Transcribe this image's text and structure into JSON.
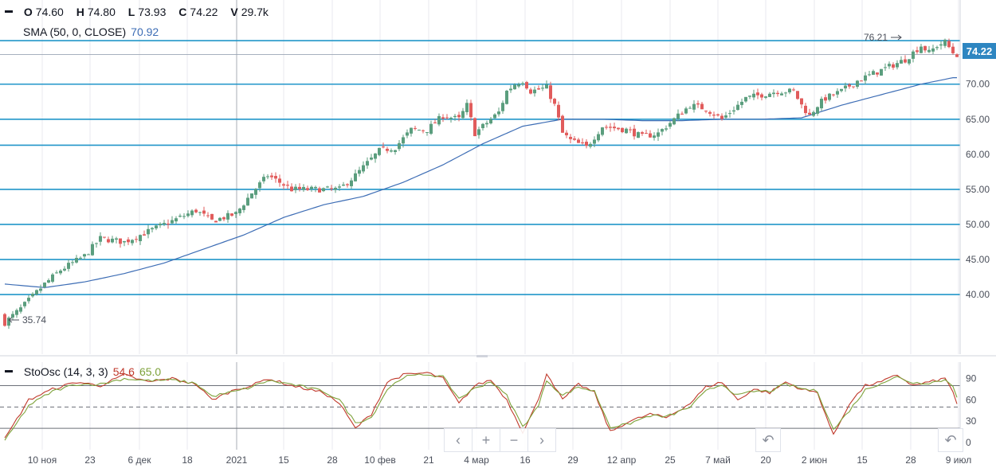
{
  "legend": {
    "o_label": "O",
    "o_value": "74.60",
    "h_label": "H",
    "h_value": "74.80",
    "l_label": "L",
    "l_value": "73.93",
    "c_label": "C",
    "c_value": "74.22",
    "v_label": "V",
    "v_value": "29.7k",
    "sma_label": "SMA (50, 0, CLOSE)",
    "sma_value": "70.92",
    "sto_label": "StoOsc (14, 3, 3)",
    "sto_k_value": "54.6",
    "sto_d_value": "65.0"
  },
  "price_tag": "74.22",
  "annotations": {
    "max_label": "76.21",
    "min_label": "35.74"
  },
  "nav": {
    "left_icon": "chevron-left-icon",
    "zoom_in_icon": "plus-icon",
    "zoom_out_icon": "minus-icon",
    "right_icon": "chevron-right-icon",
    "reset_icon": "undo-icon"
  },
  "colors": {
    "up": "#5b9e7e",
    "down": "#e15c5c",
    "sma": "#3d6db5",
    "hline": "#2196c9",
    "sto_k": "#c0392b",
    "sto_d": "#7da23a",
    "grid": "#e8eaef"
  },
  "chart_data": [
    {
      "type": "candlestick",
      "title": "",
      "ylim": [
        31.5,
        82
      ],
      "y_ticks": [
        "40.00",
        "45.00",
        "50.00",
        "55.00",
        "60.00",
        "65.00",
        "70.00"
      ],
      "y_tick_values": [
        40,
        45,
        50,
        55,
        60,
        65,
        70
      ],
      "horizontal_lines": [
        76.21,
        70,
        65,
        61.3,
        55,
        50,
        45,
        40
      ],
      "last_price": 74.22,
      "x_ticks": [
        "10 ноя",
        "23",
        "6 дек",
        "18",
        "2021",
        "15",
        "28",
        "10 фев",
        "21",
        "4 мар",
        "16",
        "29",
        "12 апр",
        "25",
        "7 май",
        "20",
        "2 июн",
        "15",
        "28",
        "9 июл"
      ],
      "x_tick_positions": [
        53,
        113,
        175,
        235,
        297,
        356,
        417,
        477,
        538,
        598,
        659,
        719,
        780,
        841,
        901,
        961,
        1022,
        1082,
        1143,
        1203
      ],
      "close_anchors": [
        [
          0,
          36
        ],
        [
          4,
          38
        ],
        [
          10,
          41.5
        ],
        [
          14,
          43.5
        ],
        [
          20,
          45.5
        ],
        [
          24,
          48
        ],
        [
          30,
          47.5
        ],
        [
          36,
          49
        ],
        [
          40,
          50
        ],
        [
          48,
          52
        ],
        [
          52,
          50.5
        ],
        [
          58,
          51.5
        ],
        [
          60,
          53
        ],
        [
          62,
          54.5
        ],
        [
          66,
          57
        ],
        [
          72,
          55
        ],
        [
          80,
          55
        ],
        [
          84,
          55
        ],
        [
          88,
          57
        ],
        [
          94,
          60.5
        ],
        [
          98,
          61
        ],
        [
          102,
          63.5
        ],
        [
          106,
          63.5
        ],
        [
          110,
          65.5
        ],
        [
          114,
          65
        ],
        [
          116,
          67
        ],
        [
          118,
          63
        ],
        [
          120,
          64
        ],
        [
          124,
          66
        ],
        [
          126,
          69
        ],
        [
          128,
          70
        ],
        [
          130,
          70.5
        ],
        [
          132,
          69
        ],
        [
          136,
          69.5
        ],
        [
          138,
          67
        ],
        [
          140,
          63
        ],
        [
          142,
          62
        ],
        [
          146,
          61
        ],
        [
          150,
          64
        ],
        [
          156,
          63.5
        ],
        [
          160,
          62.5
        ],
        [
          164,
          63
        ],
        [
          168,
          65
        ],
        [
          172,
          67
        ],
        [
          176,
          66.5
        ],
        [
          180,
          65
        ],
        [
          184,
          67
        ],
        [
          186,
          68
        ],
        [
          190,
          68.5
        ],
        [
          194,
          69
        ],
        [
          198,
          69
        ],
        [
          200,
          67
        ],
        [
          202,
          65.5
        ],
        [
          204,
          67
        ],
        [
          206,
          68
        ],
        [
          210,
          69
        ],
        [
          214,
          70.5
        ],
        [
          216,
          71
        ],
        [
          220,
          72
        ],
        [
          224,
          73
        ],
        [
          226,
          73.5
        ],
        [
          230,
          75.5
        ],
        [
          232,
          74.5
        ],
        [
          234,
          75.5
        ],
        [
          236,
          76
        ],
        [
          238,
          74.5
        ],
        [
          239,
          74.22
        ]
      ],
      "sma": {
        "name": "SMA (50, 0, CLOSE)",
        "anchors": [
          [
            0,
            41.5
          ],
          [
            10,
            41
          ],
          [
            20,
            41.8
          ],
          [
            30,
            43
          ],
          [
            40,
            44.5
          ],
          [
            50,
            46.5
          ],
          [
            60,
            48.5
          ],
          [
            70,
            51
          ],
          [
            80,
            52.8
          ],
          [
            90,
            54
          ],
          [
            100,
            56
          ],
          [
            110,
            58.5
          ],
          [
            120,
            61.5
          ],
          [
            130,
            64
          ],
          [
            140,
            65
          ],
          [
            150,
            65
          ],
          [
            160,
            64.8
          ],
          [
            170,
            64.8
          ],
          [
            180,
            65
          ],
          [
            190,
            65
          ],
          [
            200,
            65.2
          ],
          [
            210,
            67
          ],
          [
            220,
            68.5
          ],
          [
            230,
            70
          ],
          [
            238,
            70.92
          ]
        ]
      },
      "max_label": 76.21,
      "min_label": 35.74
    },
    {
      "type": "line",
      "title": "",
      "ylim": [
        -10,
        113
      ],
      "y_ticks": [
        "0",
        "30",
        "60",
        "90"
      ],
      "y_tick_values": [
        0,
        30,
        60,
        90
      ],
      "levels": [
        80,
        50,
        20
      ],
      "series": [
        {
          "name": "StoOsc %K",
          "anchors": [
            [
              0,
              5
            ],
            [
              6,
              60
            ],
            [
              12,
              75
            ],
            [
              18,
              85
            ],
            [
              24,
              80
            ],
            [
              30,
              95
            ],
            [
              36,
              85
            ],
            [
              42,
              90
            ],
            [
              48,
              82
            ],
            [
              52,
              60
            ],
            [
              58,
              75
            ],
            [
              62,
              80
            ],
            [
              66,
              90
            ],
            [
              72,
              80
            ],
            [
              80,
              70
            ],
            [
              84,
              55
            ],
            [
              88,
              20
            ],
            [
              92,
              40
            ],
            [
              96,
              85
            ],
            [
              100,
              95
            ],
            [
              106,
              98
            ],
            [
              110,
              90
            ],
            [
              114,
              55
            ],
            [
              118,
              80
            ],
            [
              122,
              88
            ],
            [
              126,
              60
            ],
            [
              130,
              15
            ],
            [
              134,
              60
            ],
            [
              136,
              98
            ],
            [
              140,
              60
            ],
            [
              144,
              82
            ],
            [
              148,
              70
            ],
            [
              152,
              15
            ],
            [
              156,
              28
            ],
            [
              162,
              40
            ],
            [
              166,
              35
            ],
            [
              172,
              55
            ],
            [
              176,
              78
            ],
            [
              180,
              85
            ],
            [
              184,
              60
            ],
            [
              188,
              75
            ],
            [
              192,
              70
            ],
            [
              196,
              85
            ],
            [
              200,
              75
            ],
            [
              204,
              70
            ],
            [
              208,
              10
            ],
            [
              212,
              55
            ],
            [
              216,
              80
            ],
            [
              220,
              85
            ],
            [
              224,
              95
            ],
            [
              228,
              80
            ],
            [
              232,
              85
            ],
            [
              236,
              90
            ],
            [
              238,
              72
            ],
            [
              239,
              54.6
            ]
          ]
        },
        {
          "name": "StoOsc %D",
          "anchors": [
            [
              0,
              2
            ],
            [
              6,
              52
            ],
            [
              12,
              72
            ],
            [
              18,
              82
            ],
            [
              24,
              82
            ],
            [
              30,
              90
            ],
            [
              36,
              87
            ],
            [
              42,
              88
            ],
            [
              48,
              83
            ],
            [
              52,
              65
            ],
            [
              58,
              72
            ],
            [
              62,
              78
            ],
            [
              66,
              87
            ],
            [
              72,
              82
            ],
            [
              80,
              72
            ],
            [
              84,
              60
            ],
            [
              88,
              28
            ],
            [
              92,
              35
            ],
            [
              96,
              75
            ],
            [
              100,
              92
            ],
            [
              106,
              96
            ],
            [
              110,
              92
            ],
            [
              114,
              62
            ],
            [
              118,
              76
            ],
            [
              122,
              86
            ],
            [
              126,
              66
            ],
            [
              130,
              22
            ],
            [
              134,
              52
            ],
            [
              136,
              88
            ],
            [
              140,
              66
            ],
            [
              144,
              78
            ],
            [
              148,
              72
            ],
            [
              152,
              22
            ],
            [
              156,
              25
            ],
            [
              162,
              38
            ],
            [
              166,
              36
            ],
            [
              172,
              50
            ],
            [
              176,
              72
            ],
            [
              180,
              82
            ],
            [
              184,
              66
            ],
            [
              188,
              72
            ],
            [
              192,
              72
            ],
            [
              196,
              82
            ],
            [
              200,
              76
            ],
            [
              204,
              72
            ],
            [
              208,
              18
            ],
            [
              212,
              45
            ],
            [
              216,
              74
            ],
            [
              220,
              84
            ],
            [
              224,
              92
            ],
            [
              228,
              84
            ],
            [
              232,
              84
            ],
            [
              236,
              88
            ],
            [
              238,
              80
            ],
            [
              239,
              65
            ]
          ]
        }
      ]
    }
  ]
}
